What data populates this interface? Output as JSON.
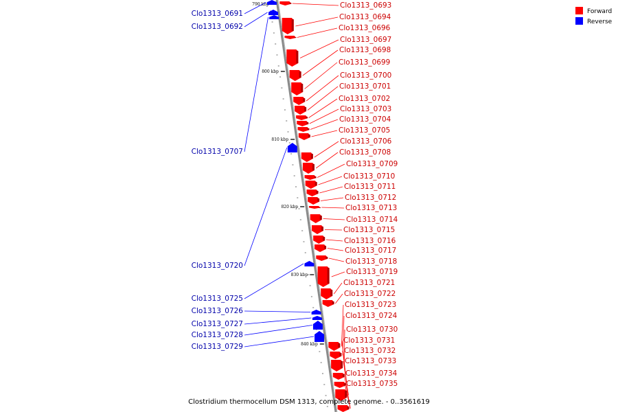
{
  "caption": "Clostridium thermocellum DSM 1313, complete genome. - 0..3561619",
  "legend": {
    "placement": "top-right",
    "items": [
      {
        "label": "Forward",
        "color": "#ff0000"
      },
      {
        "label": "Reverse",
        "color": "#0000ff"
      }
    ]
  },
  "colors": {
    "forward": "#ff0000",
    "reverse": "#0000ff",
    "backbone": "#888888"
  },
  "ticks": [
    "790 kbp",
    "800 kbp",
    "810 kbp",
    "820 kbp",
    "830 kbp",
    "840 kbp"
  ],
  "forward_genes": [
    "Clo1313_0693",
    "Clo1313_0694",
    "Clo1313_0696",
    "Clo1313_0697",
    "Clo1313_0698",
    "Clo1313_0699",
    "Clo1313_0700",
    "Clo1313_0701",
    "Clo1313_0702",
    "Clo1313_0703",
    "Clo1313_0704",
    "Clo1313_0705",
    "Clo1313_0706",
    "Clo1313_0708",
    "Clo1313_0709",
    "Clo1313_0710",
    "Clo1313_0711",
    "Clo1313_0712",
    "Clo1313_0713",
    "Clo1313_0714",
    "Clo1313_0715",
    "Clo1313_0716",
    "Clo1313_0717",
    "Clo1313_0718",
    "Clo1313_0719",
    "Clo1313_0721",
    "Clo1313_0722",
    "Clo1313_0723",
    "Clo1313_0724",
    "Clo1313_0730",
    "Clo1313_0731",
    "Clo1313_0732",
    "Clo1313_0733",
    "Clo1313_0734",
    "Clo1313_0735"
  ],
  "reverse_genes": [
    "Clo1313_0691",
    "Clo1313_0692",
    "Clo1313_0707",
    "Clo1313_0720",
    "Clo1313_0725",
    "Clo1313_0726",
    "Clo1313_0727",
    "Clo1313_0728",
    "Clo1313_0729"
  ]
}
